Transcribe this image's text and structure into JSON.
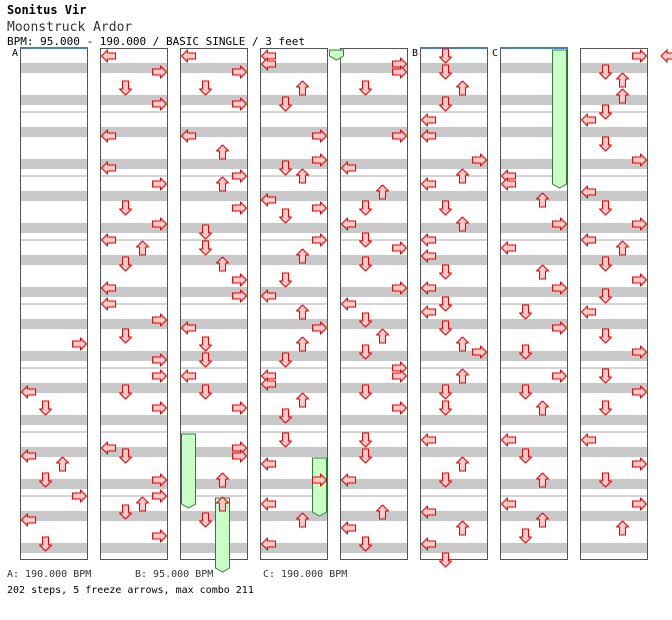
{
  "song": {
    "artist": "Sonitus Vir",
    "title": "Moonstruck Ardor",
    "info": "BPM: 95.000 - 190.000 / BASIC SINGLE / 3 feet"
  },
  "bpm_changes": [
    {
      "label": "A",
      "text": "A: 190.000 BPM"
    },
    {
      "label": "B",
      "text": "B: 95.000 BPM"
    },
    {
      "label": "C",
      "text": "C: 190.000 BPM"
    }
  ],
  "stats": "202 steps, 5 freeze arrows, max combo 211",
  "colors": {
    "arrow_fill": "#ffc8c8",
    "arrow_stroke": "#e00000",
    "freeze_fill": "#c8ffc8",
    "freeze_stroke": "#308030",
    "stripe": "#c8c8c8",
    "bpm_line": "#4a7fc0"
  },
  "lanes_legend": [
    "left",
    "down",
    "up",
    "right"
  ],
  "chart_data": {
    "type": "step-chart",
    "measures_per_column": 8,
    "rows_per_measure": 8,
    "columns": [
      {
        "bpm_marker": "A",
        "notes": [
          [
            4,
            4,
            "R"
          ],
          [
            5,
            2,
            "L"
          ],
          [
            5,
            4,
            "D"
          ],
          [
            6,
            2,
            "L"
          ],
          [
            6,
            3,
            "U"
          ],
          [
            6,
            5,
            "D"
          ],
          [
            6,
            7,
            "R"
          ],
          [
            7,
            2,
            "L"
          ],
          [
            7,
            5,
            "D"
          ]
        ]
      },
      {
        "notes": [
          [
            0,
            0,
            "L"
          ],
          [
            0,
            2,
            "R"
          ],
          [
            0,
            4,
            "D"
          ],
          [
            0,
            6,
            "R"
          ],
          [
            1,
            2,
            "L"
          ],
          [
            1,
            6,
            "L"
          ],
          [
            2,
            0,
            "R"
          ],
          [
            2,
            3,
            "D"
          ],
          [
            2,
            5,
            "R"
          ],
          [
            2,
            7,
            "L"
          ],
          [
            3,
            0,
            "U"
          ],
          [
            3,
            2,
            "D"
          ],
          [
            3,
            5,
            "L"
          ],
          [
            3,
            7,
            "L"
          ],
          [
            4,
            1,
            "R"
          ],
          [
            4,
            3,
            "D"
          ],
          [
            4,
            6,
            "R"
          ],
          [
            5,
            0,
            "R"
          ],
          [
            5,
            2,
            "D"
          ],
          [
            5,
            4,
            "R"
          ],
          [
            6,
            1,
            "L"
          ],
          [
            6,
            2,
            "D"
          ],
          [
            6,
            5,
            "R"
          ],
          [
            6,
            7,
            "R"
          ],
          [
            7,
            0,
            "U"
          ],
          [
            7,
            1,
            "D"
          ],
          [
            7,
            4,
            "R"
          ]
        ]
      },
      {
        "notes": [
          [
            0,
            0,
            "L"
          ],
          [
            0,
            2,
            "R"
          ],
          [
            0,
            4,
            "D"
          ],
          [
            0,
            6,
            "R"
          ],
          [
            1,
            2,
            "L"
          ],
          [
            1,
            4,
            "U"
          ],
          [
            1,
            7,
            "R"
          ],
          [
            2,
            0,
            "U"
          ],
          [
            2,
            3,
            "R"
          ],
          [
            2,
            6,
            "D"
          ],
          [
            3,
            0,
            "D"
          ],
          [
            3,
            2,
            "U"
          ],
          [
            3,
            4,
            "R"
          ],
          [
            3,
            6,
            "R"
          ],
          [
            4,
            2,
            "L"
          ],
          [
            4,
            4,
            "D"
          ],
          [
            4,
            6,
            "D"
          ],
          [
            5,
            0,
            "L"
          ],
          [
            5,
            2,
            "D"
          ],
          [
            5,
            4,
            "R"
          ],
          [
            6,
            1,
            "R"
          ],
          [
            6,
            2,
            "R"
          ],
          [
            6,
            5,
            "U"
          ],
          [
            7,
            0,
            "U"
          ],
          [
            7,
            2,
            "D"
          ]
        ]
      },
      {
        "notes": [
          [
            0,
            0,
            "L"
          ],
          [
            0,
            1,
            "L"
          ],
          [
            0,
            4,
            "U"
          ],
          [
            0,
            6,
            "D"
          ],
          [
            1,
            2,
            "R"
          ],
          [
            1,
            5,
            "R"
          ],
          [
            1,
            6,
            "D"
          ],
          [
            1,
            7,
            "U"
          ],
          [
            2,
            2,
            "L"
          ],
          [
            2,
            3,
            "R"
          ],
          [
            2,
            4,
            "D"
          ],
          [
            2,
            7,
            "R"
          ],
          [
            3,
            1,
            "U"
          ],
          [
            3,
            4,
            "D"
          ],
          [
            3,
            6,
            "L"
          ],
          [
            4,
            0,
            "U"
          ],
          [
            4,
            2,
            "R"
          ],
          [
            4,
            4,
            "U"
          ],
          [
            4,
            6,
            "D"
          ],
          [
            5,
            0,
            "L"
          ],
          [
            5,
            1,
            "L"
          ],
          [
            5,
            3,
            "U"
          ],
          [
            5,
            5,
            "D"
          ],
          [
            6,
            0,
            "D"
          ],
          [
            6,
            3,
            "L"
          ],
          [
            6,
            5,
            "R"
          ],
          [
            7,
            0,
            "L"
          ],
          [
            7,
            2,
            "U"
          ],
          [
            7,
            5,
            "L"
          ]
        ]
      },
      {
        "notes": [
          [
            0,
            1,
            "R"
          ],
          [
            0,
            2,
            "R"
          ],
          [
            0,
            4,
            "D"
          ],
          [
            1,
            2,
            "R"
          ],
          [
            1,
            6,
            "L"
          ],
          [
            2,
            1,
            "U"
          ],
          [
            2,
            3,
            "D"
          ],
          [
            2,
            5,
            "L"
          ],
          [
            2,
            7,
            "D"
          ],
          [
            3,
            0,
            "R"
          ],
          [
            3,
            2,
            "D"
          ],
          [
            3,
            5,
            "R"
          ],
          [
            3,
            7,
            "L"
          ],
          [
            4,
            1,
            "D"
          ],
          [
            4,
            3,
            "U"
          ],
          [
            4,
            5,
            "D"
          ],
          [
            4,
            7,
            "R"
          ],
          [
            5,
            0,
            "R"
          ],
          [
            5,
            2,
            "D"
          ],
          [
            5,
            4,
            "R"
          ],
          [
            6,
            0,
            "D"
          ],
          [
            6,
            2,
            "D"
          ],
          [
            6,
            5,
            "L"
          ],
          [
            7,
            1,
            "U"
          ],
          [
            7,
            3,
            "L"
          ],
          [
            7,
            5,
            "D"
          ]
        ]
      },
      {
        "bpm_marker": "B",
        "notes": [
          [
            0,
            0,
            "D"
          ],
          [
            0,
            2,
            "D"
          ],
          [
            0,
            4,
            "U"
          ],
          [
            0,
            6,
            "D"
          ],
          [
            1,
            0,
            "L"
          ],
          [
            1,
            2,
            "L"
          ],
          [
            1,
            5,
            "R"
          ],
          [
            1,
            7,
            "U"
          ],
          [
            2,
            0,
            "L"
          ],
          [
            2,
            3,
            "D"
          ],
          [
            2,
            5,
            "U"
          ],
          [
            2,
            7,
            "L"
          ],
          [
            3,
            1,
            "L"
          ],
          [
            3,
            3,
            "D"
          ],
          [
            3,
            5,
            "L"
          ],
          [
            3,
            7,
            "D"
          ],
          [
            4,
            0,
            "L"
          ],
          [
            4,
            2,
            "D"
          ],
          [
            4,
            4,
            "U"
          ],
          [
            4,
            5,
            "R"
          ],
          [
            5,
            0,
            "U"
          ],
          [
            5,
            2,
            "D"
          ],
          [
            5,
            4,
            "D"
          ],
          [
            6,
            0,
            "L"
          ],
          [
            6,
            3,
            "U"
          ],
          [
            6,
            5,
            "D"
          ],
          [
            7,
            1,
            "L"
          ],
          [
            7,
            3,
            "U"
          ],
          [
            7,
            5,
            "L"
          ],
          [
            7,
            7,
            "D"
          ]
        ]
      },
      {
        "bpm_marker": "C",
        "notes": [
          [
            1,
            7,
            "L"
          ],
          [
            2,
            0,
            "L"
          ],
          [
            2,
            2,
            "U"
          ],
          [
            2,
            5,
            "R"
          ],
          [
            3,
            0,
            "L"
          ],
          [
            3,
            3,
            "U"
          ],
          [
            3,
            5,
            "R"
          ],
          [
            4,
            0,
            "D"
          ],
          [
            4,
            2,
            "R"
          ],
          [
            4,
            5,
            "D"
          ],
          [
            5,
            0,
            "R"
          ],
          [
            5,
            2,
            "D"
          ],
          [
            5,
            4,
            "U"
          ],
          [
            6,
            0,
            "L"
          ],
          [
            6,
            2,
            "D"
          ],
          [
            6,
            5,
            "U"
          ],
          [
            7,
            0,
            "L"
          ],
          [
            7,
            2,
            "U"
          ],
          [
            7,
            4,
            "D"
          ]
        ]
      },
      {
        "notes": [
          [
            0,
            0,
            "R"
          ],
          [
            0,
            2,
            "D"
          ],
          [
            0,
            3,
            "U"
          ],
          [
            0,
            5,
            "U"
          ],
          [
            0,
            7,
            "D"
          ],
          [
            1,
            0,
            "L"
          ],
          [
            1,
            3,
            "D"
          ],
          [
            1,
            5,
            "R"
          ],
          [
            2,
            1,
            "L"
          ],
          [
            2,
            3,
            "D"
          ],
          [
            2,
            5,
            "R"
          ],
          [
            2,
            7,
            "L"
          ],
          [
            3,
            0,
            "U"
          ],
          [
            3,
            2,
            "D"
          ],
          [
            3,
            4,
            "R"
          ],
          [
            3,
            6,
            "D"
          ],
          [
            4,
            0,
            "L"
          ],
          [
            4,
            3,
            "D"
          ],
          [
            4,
            5,
            "R"
          ],
          [
            5,
            0,
            "D"
          ],
          [
            5,
            2,
            "R"
          ],
          [
            5,
            4,
            "D"
          ],
          [
            6,
            0,
            "L"
          ],
          [
            6,
            3,
            "R"
          ],
          [
            6,
            5,
            "D"
          ],
          [
            7,
            0,
            "R"
          ],
          [
            7,
            3,
            "U"
          ]
        ]
      }
    ],
    "freezes": [
      {
        "column": 2,
        "lane": 0,
        "start_measure": 6,
        "start_row": 0,
        "end_measure": 7,
        "end_row": 0
      },
      {
        "column": 2,
        "lane": 2,
        "start_measure": 7,
        "start_row": 0,
        "end_measure": 8,
        "end_row": 0
      },
      {
        "column": 3,
        "lane": 3,
        "start_measure": 6,
        "start_row": 3,
        "end_measure": 7,
        "end_row": 1
      },
      {
        "column": 3,
        "lane": 4,
        "start_measure": 0,
        "start_row": 0,
        "end_measure": 0,
        "end_row": 0
      },
      {
        "column": 6,
        "lane": 3,
        "start_measure": 0,
        "start_row": 0,
        "end_measure": 2,
        "end_row": 0
      }
    ]
  }
}
